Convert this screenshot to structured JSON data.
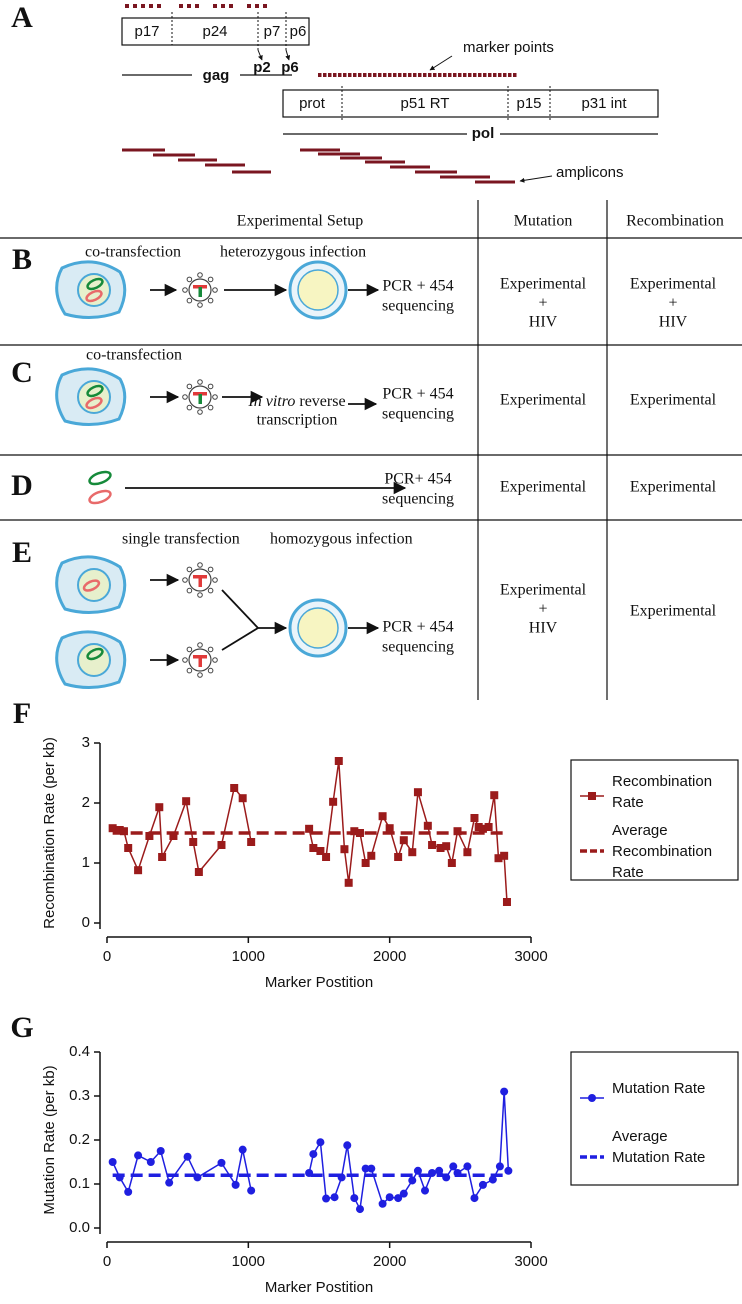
{
  "panel_labels": [
    "A",
    "B",
    "C",
    "D",
    "E",
    "F",
    "G"
  ],
  "panel_a": {
    "gag_segments": [
      "p17",
      "p24",
      "p7",
      "p6"
    ],
    "gag_cleavage": [
      "p2",
      "p6"
    ],
    "gag_label": "gag",
    "marker_label": "marker points",
    "pol_segments": [
      "prot",
      "p51 RT",
      "p15",
      "p31 int"
    ],
    "pol_label": "pol",
    "amplicons_label": "amplicons"
  },
  "table": {
    "headers": [
      "Experimental Setup",
      "Mutation",
      "Recombination"
    ],
    "rows": [
      {
        "steps": [
          "co-transfection",
          "heterozygous infection"
        ],
        "output": [
          "PCR + 454",
          "sequencing"
        ],
        "mutation": [
          "Experimental",
          "+",
          "HIV"
        ],
        "recombination": [
          "Experimental",
          "+",
          "HIV"
        ]
      },
      {
        "steps": [
          "co-transfection"
        ],
        "process_italic": "In vitro",
        "process": [
          "reverse",
          "transcription"
        ],
        "output": [
          "PCR + 454",
          "sequencing"
        ],
        "mutation": [
          "Experimental"
        ],
        "recombination": [
          "Experimental"
        ]
      },
      {
        "output": [
          "PCR+ 454",
          "sequencing"
        ],
        "mutation": [
          "Experimental"
        ],
        "recombination": [
          "Experimental"
        ]
      },
      {
        "steps": [
          "single transfection",
          "homozygous infection"
        ],
        "output": [
          "PCR + 454",
          "sequencing"
        ],
        "mutation": [
          "Experimental",
          "+",
          "HIV"
        ],
        "recombination": [
          "Experimental"
        ]
      }
    ]
  },
  "chart_data": [
    {
      "type": "line",
      "marker": "square",
      "x_label": "Marker Postition",
      "y_label": "Recombination Rate (per kb)",
      "xlim": [
        0,
        3000
      ],
      "xticks": [
        0,
        1000,
        2000,
        3000
      ],
      "ylim": [
        0,
        3
      ],
      "yticks": [
        0,
        1,
        2,
        3
      ],
      "x": [
        40,
        90,
        120,
        150,
        220,
        300,
        370,
        390,
        470,
        560,
        610,
        650,
        810,
        900,
        960,
        1020,
        null,
        1430,
        1460,
        1510,
        1550,
        1600,
        1640,
        1680,
        1710,
        1750,
        1790,
        1830,
        1870,
        1950,
        2000,
        2060,
        2100,
        2160,
        2200,
        2270,
        2300,
        2360,
        2400,
        2440,
        2480,
        2550,
        2600,
        2630,
        2660,
        2700,
        2740,
        2770,
        2810,
        2830
      ],
      "series": [
        {
          "name": "Recombination Rate",
          "color": "#9b1b1b",
          "values": [
            1.58,
            1.55,
            1.53,
            1.25,
            0.88,
            1.45,
            1.93,
            1.1,
            1.45,
            2.03,
            1.35,
            0.85,
            1.3,
            2.25,
            2.08,
            1.35,
            null,
            1.57,
            1.25,
            1.2,
            1.1,
            2.02,
            2.7,
            1.23,
            0.67,
            1.53,
            1.5,
            1.0,
            1.12,
            1.78,
            1.58,
            1.1,
            1.38,
            1.18,
            2.18,
            1.62,
            1.3,
            1.25,
            1.28,
            1.0,
            1.53,
            1.18,
            1.75,
            1.6,
            1.57,
            1.6,
            2.13,
            1.08,
            1.12,
            0.35
          ]
        }
      ],
      "reference_line": {
        "name": "Average Recombination Rate",
        "value": 1.5,
        "color": "#9b1b1b"
      }
    },
    {
      "type": "line",
      "marker": "circle",
      "x_label": "Marker Postition",
      "y_label": "Mutation Rate (per kb)",
      "xlim": [
        0,
        3000
      ],
      "xticks": [
        0,
        1000,
        2000,
        3000
      ],
      "ylim": [
        0,
        0.4
      ],
      "yticks": [
        {
          "value": 0,
          "label": "0.0"
        },
        0.1,
        0.2,
        0.3,
        0.4
      ],
      "x": [
        40,
        90,
        150,
        220,
        310,
        380,
        440,
        570,
        640,
        810,
        910,
        960,
        1020,
        null,
        1430,
        1460,
        1510,
        1550,
        1610,
        1660,
        1700,
        1750,
        1790,
        1830,
        1870,
        1950,
        2000,
        2060,
        2100,
        2160,
        2200,
        2250,
        2300,
        2350,
        2400,
        2450,
        2480,
        2550,
        2600,
        2660,
        2730,
        2780,
        2810,
        2840
      ],
      "series": [
        {
          "name": "Mutation Rate",
          "color": "#1f1fe0",
          "values": [
            0.15,
            0.115,
            0.082,
            0.165,
            0.15,
            0.175,
            0.103,
            0.162,
            0.115,
            0.148,
            0.098,
            0.178,
            0.085,
            null,
            0.125,
            0.168,
            0.195,
            0.067,
            0.07,
            0.115,
            0.188,
            0.068,
            0.043,
            0.135,
            0.135,
            0.055,
            0.07,
            0.068,
            0.078,
            0.108,
            0.13,
            0.085,
            0.125,
            0.13,
            0.115,
            0.14,
            0.125,
            0.14,
            0.068,
            0.098,
            0.11,
            0.14,
            0.31,
            0.13
          ]
        }
      ],
      "reference_line": {
        "name": "Average Mutation Rate",
        "value": 0.12,
        "color": "#1f1fe0"
      }
    }
  ]
}
